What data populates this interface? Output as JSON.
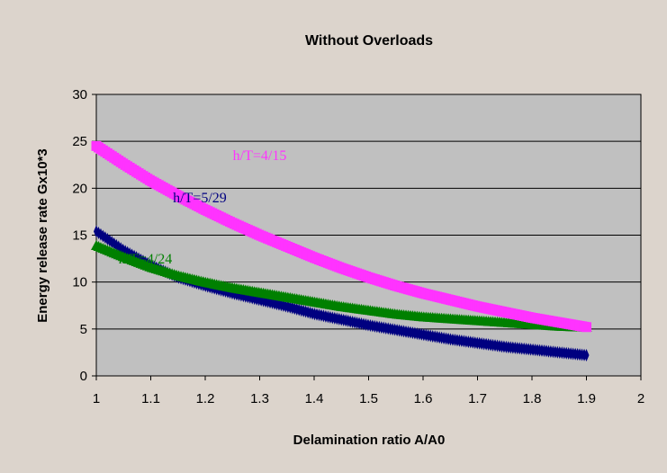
{
  "chart_data": {
    "type": "line",
    "title": "Without Overloads",
    "xlabel": "Delamination ratio A/A0",
    "ylabel": "Energy release rate Gx10*3",
    "xlim": [
      1,
      2
    ],
    "ylim": [
      0,
      30
    ],
    "xticks": [
      "1",
      "1.1",
      "1.2",
      "1.3",
      "1.4",
      "1.5",
      "1.6",
      "1.7",
      "1.8",
      "1.9",
      "2"
    ],
    "yticks": [
      "0",
      "5",
      "10",
      "15",
      "20",
      "25",
      "30"
    ],
    "grid": "horizontal",
    "series": [
      {
        "name": "h/T=4/15",
        "color": "#ff33ff",
        "marker": "square",
        "x": [
          1.0,
          1.05,
          1.1,
          1.15,
          1.2,
          1.25,
          1.3,
          1.35,
          1.4,
          1.45,
          1.5,
          1.55,
          1.6,
          1.65,
          1.7,
          1.75,
          1.8,
          1.85,
          1.9
        ],
        "y": [
          24.5,
          22.6,
          20.8,
          19.2,
          17.7,
          16.3,
          15.0,
          13.8,
          12.6,
          11.5,
          10.5,
          9.6,
          8.8,
          8.1,
          7.4,
          6.8,
          6.2,
          5.7,
          5.2
        ]
      },
      {
        "name": "h/T=5/29",
        "color": "#000080",
        "marker": "diamond",
        "x": [
          1.0,
          1.05,
          1.1,
          1.15,
          1.2,
          1.25,
          1.3,
          1.35,
          1.4,
          1.45,
          1.5,
          1.55,
          1.6,
          1.65,
          1.7,
          1.75,
          1.8,
          1.85,
          1.9
        ],
        "y": [
          15.4,
          13.4,
          11.8,
          10.5,
          9.6,
          8.8,
          8.1,
          7.4,
          6.6,
          6.0,
          5.4,
          4.9,
          4.4,
          3.9,
          3.5,
          3.1,
          2.8,
          2.5,
          2.2
        ]
      },
      {
        "name": "h/T=4/24",
        "color": "#008000",
        "marker": "triangle",
        "x": [
          1.0,
          1.05,
          1.1,
          1.15,
          1.2,
          1.25,
          1.3,
          1.35,
          1.4,
          1.45,
          1.5,
          1.55,
          1.6,
          1.65,
          1.7,
          1.75,
          1.8,
          1.85,
          1.9
        ],
        "y": [
          13.8,
          12.6,
          11.5,
          10.6,
          9.9,
          9.3,
          8.8,
          8.3,
          7.8,
          7.3,
          6.9,
          6.5,
          6.2,
          6.0,
          5.8,
          5.6,
          5.4,
          5.2,
          5.1
        ]
      }
    ]
  }
}
